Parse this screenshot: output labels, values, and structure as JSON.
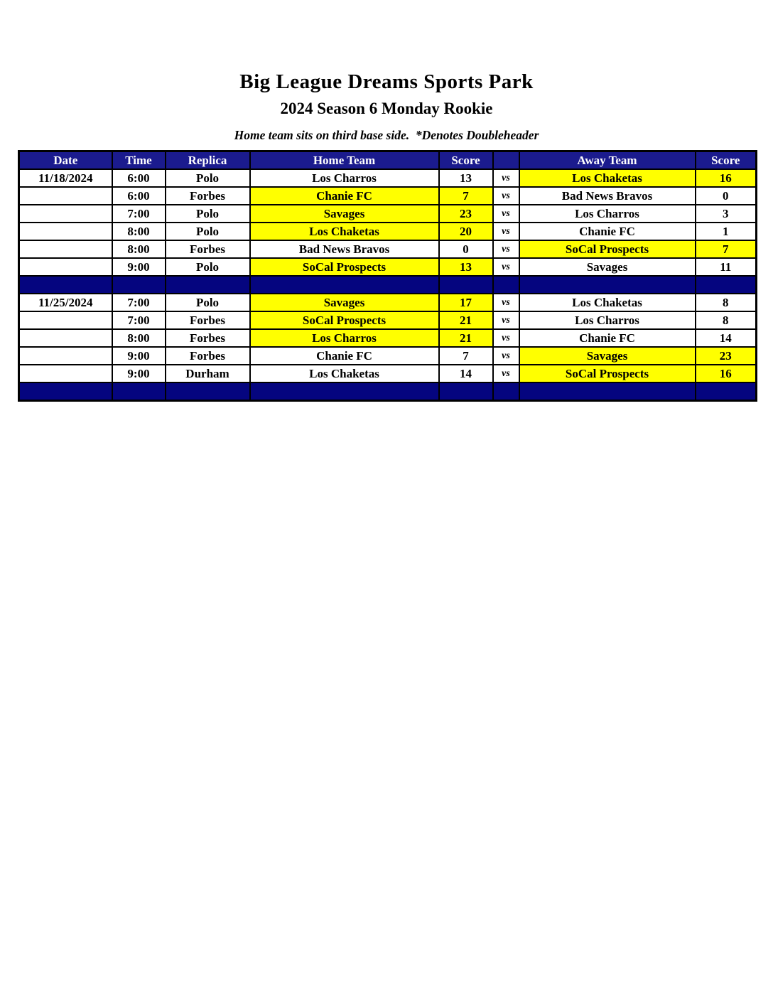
{
  "page": {
    "title": "Big League Dreams Sports Park",
    "subtitle": "2024 Season 6 Monday Rookie",
    "note": "Home team sits on third base side.  *Denotes Doubleheader"
  },
  "colors": {
    "header_navy": "#1b1b8e",
    "separator_navy": "#05057f",
    "highlight_yellow": "#ffff00",
    "border_black": "#000000",
    "header_text": "#ffffff"
  },
  "table": {
    "columns": [
      "Date",
      "Time",
      "Replica",
      "Home Team",
      "Score",
      "",
      "Away Team",
      "Score"
    ],
    "vs_label": "vs",
    "rows": [
      {
        "kind": "game",
        "date": "11/18/2024",
        "time": "6:00",
        "replica": "Polo",
        "home": "Los Charros",
        "home_score": "13",
        "away": "Los Chaketas",
        "away_score": "16",
        "highlight": "away"
      },
      {
        "kind": "game",
        "date": "",
        "time": "6:00",
        "replica": "Forbes",
        "home": "Chanie FC",
        "home_score": "7",
        "away": "Bad News Bravos",
        "away_score": "0",
        "highlight": "home"
      },
      {
        "kind": "game",
        "date": "",
        "time": "7:00",
        "replica": "Polo",
        "home": "Savages",
        "home_score": "23",
        "away": "Los Charros",
        "away_score": "3",
        "highlight": "home"
      },
      {
        "kind": "game",
        "date": "",
        "time": "8:00",
        "replica": "Polo",
        "home": "Los Chaketas",
        "home_score": "20",
        "away": "Chanie FC",
        "away_score": "1",
        "highlight": "home"
      },
      {
        "kind": "game",
        "date": "",
        "time": "8:00",
        "replica": "Forbes",
        "home": "Bad News Bravos",
        "home_score": "0",
        "away": "SoCal Prospects",
        "away_score": "7",
        "highlight": "away"
      },
      {
        "kind": "game",
        "date": "",
        "time": "9:00",
        "replica": "Polo",
        "home": "SoCal Prospects",
        "home_score": "13",
        "away": "Savages",
        "away_score": "11",
        "highlight": "home"
      },
      {
        "kind": "separator"
      },
      {
        "kind": "game",
        "date": "11/25/2024",
        "time": "7:00",
        "replica": "Polo",
        "home": "Savages",
        "home_score": "17",
        "away": "Los Chaketas",
        "away_score": "8",
        "highlight": "home"
      },
      {
        "kind": "game",
        "date": "",
        "time": "7:00",
        "replica": "Forbes",
        "home": "SoCal Prospects",
        "home_score": "21",
        "away": "Los Charros",
        "away_score": "8",
        "highlight": "home"
      },
      {
        "kind": "game",
        "date": "",
        "time": "8:00",
        "replica": "Forbes",
        "home": "Los Charros",
        "home_score": "21",
        "away": "Chanie FC",
        "away_score": "14",
        "highlight": "home"
      },
      {
        "kind": "game",
        "date": "",
        "time": "9:00",
        "replica": "Forbes",
        "home": "Chanie FC",
        "home_score": "7",
        "away": "Savages",
        "away_score": "23",
        "highlight": "away"
      },
      {
        "kind": "game",
        "date": "",
        "time": "9:00",
        "replica": "Durham",
        "home": "Los Chaketas",
        "home_score": "14",
        "away": "SoCal Prospects",
        "away_score": "16",
        "highlight": "away"
      },
      {
        "kind": "separator"
      }
    ]
  }
}
